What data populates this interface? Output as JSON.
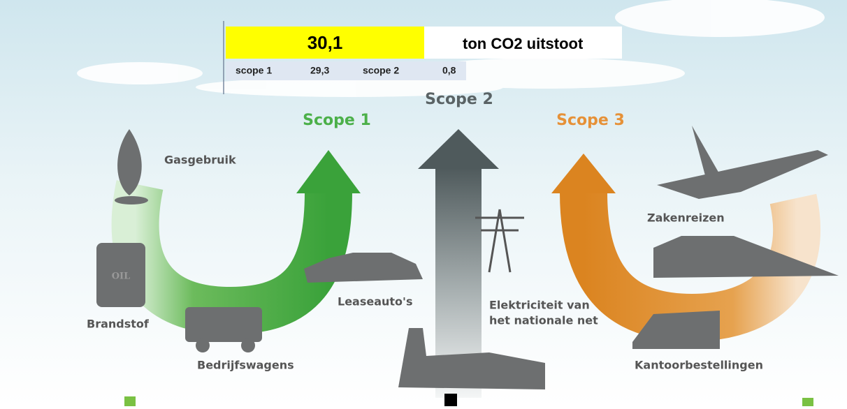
{
  "summary": {
    "total": "30,1",
    "unit": "ton CO2 uitstoot",
    "row": [
      "scope 1",
      "29,3",
      "scope 2",
      "0,8"
    ]
  },
  "scope1": {
    "title": "Scope 1",
    "items": [
      "Gasgebruik",
      "Brandstof",
      "Bedrijfswagens",
      "Leaseauto's"
    ],
    "barrel_text": "OIL"
  },
  "scope2": {
    "title": "Scope 2",
    "label_lines": [
      "Elektriciteit van",
      "het nationale net"
    ]
  },
  "scope3": {
    "title": "Scope 3",
    "items": [
      "Zakenreizen",
      "Kantoorbestellingen"
    ]
  }
}
